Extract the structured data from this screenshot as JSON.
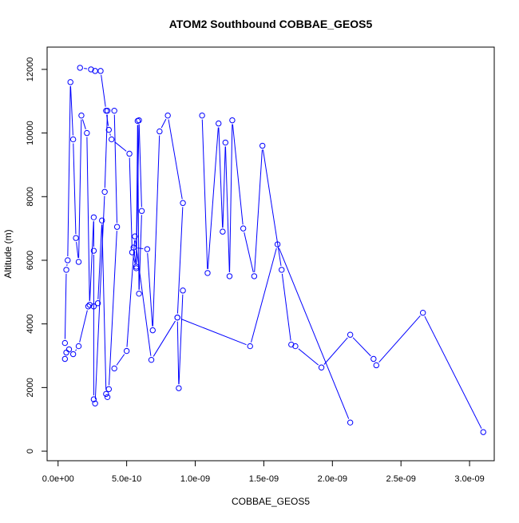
{
  "chart_data": {
    "type": "line",
    "title": "ATOM2 Southbound COBBAE_GEOS5",
    "xlabel": "COBBAE_GEOS5",
    "ylabel": "Altitude (m)",
    "xlim": [
      -8e-11,
      3.18e-09
    ],
    "ylim": [
      -300,
      12700
    ],
    "x_ticks": [
      0,
      5e-10,
      1e-09,
      1.5e-09,
      2e-09,
      2.5e-09,
      3e-09
    ],
    "x_tick_labels": [
      "0.0e+00",
      "5.0e-10",
      "1.0e-09",
      "1.5e-09",
      "2.0e-09",
      "2.5e-09",
      "3.0e-09"
    ],
    "y_ticks": [
      0,
      2000,
      4000,
      6000,
      8000,
      10000,
      12000
    ],
    "y_tick_labels": [
      "0",
      "2000",
      "4000",
      "6000",
      "8000",
      "10000",
      "12000"
    ],
    "grid": false,
    "line_color": "#0000ff",
    "marker": "open-circle",
    "series": [
      {
        "x": [
          5e-11,
          6e-11,
          8e-11,
          1.1e-10,
          1.5e-10,
          2.2e-10,
          2.6e-10,
          2.9e-10,
          3.2e-10,
          3.5e-10,
          3.6e-10,
          3.7e-10,
          4.3e-10,
          4.1e-10,
          3.6e-10,
          3.4e-10,
          2.7e-10,
          2.6e-10,
          2.6e-10,
          2.6e-10,
          2.3e-10,
          2.1e-10,
          1.7e-10,
          1.5e-10,
          1.3e-10,
          1.1e-10,
          9e-11,
          7e-11,
          6e-11,
          5e-11
        ],
        "y": [
          2900,
          3100,
          3200,
          3050,
          3300,
          4550,
          4550,
          4650,
          7250,
          1800,
          1700,
          1950,
          7050,
          10700,
          10700,
          8150,
          1500,
          1630,
          6300,
          7350,
          4600,
          10000,
          10550,
          5950,
          6700,
          9800,
          11600,
          6000,
          5700,
          3400
        ]
      },
      {
        "x": [
          1.6e-10,
          2.4e-10,
          2.7e-10,
          3.1e-10,
          3.5e-10,
          3.7e-10,
          3.9e-10,
          5.2e-10,
          5.4e-10,
          5.7e-10,
          5.9e-10,
          6.1e-10,
          5.9e-10,
          5.8e-10,
          5.7e-10,
          5.5e-10,
          6.5e-10,
          6.9e-10,
          7.4e-10,
          8e-10,
          9.1e-10,
          8.7e-10,
          8.8e-10,
          9.1e-10
        ],
        "y": [
          12050,
          12000,
          11950,
          11950,
          10700,
          10100,
          9800,
          9350,
          6250,
          5750,
          10400,
          7550,
          4950,
          10380,
          5800,
          6400,
          6350,
          3800,
          10050,
          10550,
          7800,
          4200,
          1980,
          5050
        ]
      },
      {
        "x": [
          1.05e-09,
          1.09e-09,
          1.17e-09,
          1.2e-09,
          1.22e-09,
          1.25e-09,
          1.27e-09,
          1.35e-09,
          1.43e-09,
          1.49e-09,
          1.63e-09,
          1.7e-09,
          1.73e-09,
          1.92e-09,
          2.13e-09,
          2.3e-09,
          2.32e-09,
          2.66e-09,
          3.1e-09
        ],
        "y": [
          10550,
          5600,
          10300,
          6900,
          9700,
          5500,
          10400,
          7000,
          5500,
          9600,
          5700,
          3350,
          3300,
          2630,
          3660,
          2900,
          2700,
          4350,
          600
        ]
      },
      {
        "x": [
          4.1e-10,
          5e-10,
          5.6e-10,
          6.8e-10,
          8.7e-10,
          1.4e-09,
          1.6e-09,
          2.13e-09
        ],
        "y": [
          2600,
          3150,
          6750,
          2870,
          4200,
          3300,
          6500,
          900
        ]
      }
    ]
  }
}
